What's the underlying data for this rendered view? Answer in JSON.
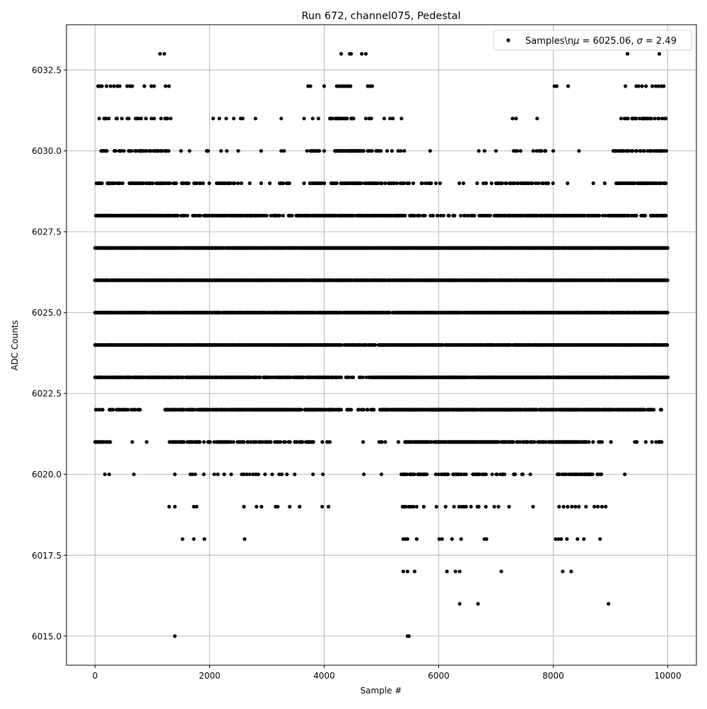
{
  "chart_data": {
    "type": "scatter",
    "title": "Run 672, channel075, Pedestal",
    "xlabel": "Sample #",
    "ylabel": "ADC Counts",
    "xlim": [
      -500,
      10500
    ],
    "ylim": [
      6014.1,
      6033.9
    ],
    "xticks": [
      0,
      2000,
      4000,
      6000,
      8000,
      10000
    ],
    "xtick_labels": [
      "0",
      "2000",
      "4000",
      "6000",
      "8000",
      "10000"
    ],
    "yticks": [
      6015.0,
      6017.5,
      6020.0,
      6022.5,
      6025.0,
      6027.5,
      6030.0,
      6032.5
    ],
    "ytick_labels": [
      "6015.0",
      "6017.5",
      "6020.0",
      "6022.5",
      "6025.0",
      "6027.5",
      "6030.0",
      "6032.5"
    ],
    "grid": true,
    "legend_position": "top-right",
    "marker_color": "#000000",
    "grid_color": "#b0b0b0",
    "series": [
      {
        "name": "Samples\\nμ = 6025.06, σ = 2.49",
        "levels": [
          {
            "y": 6033,
            "points": [
              1133,
              1207,
              4298,
              4446,
              4470,
              4655,
              4729,
              9298,
              9852
            ]
          },
          {
            "y": 6032,
            "points": [
              50,
              80,
              120,
              200,
              270,
              330,
              390,
              430,
              560,
              610,
              650,
              860,
              980,
              1030,
              1230,
              1290,
              3720,
              3760,
              4000,
              4220,
              4260,
              4300,
              4330,
              4360,
              4400,
              4430,
              4460,
              4760,
              4800,
              4840,
              8020,
              8060,
              8260,
              9260,
              9450,
              9490,
              9550,
              9620,
              9730,
              9790,
              9840,
              9890,
              9930
            ]
          },
          {
            "y": 6031,
            "segments": [
              [
                0,
                1350,
                0.25
              ],
              [
                2050,
                2600,
                0.15
              ],
              [
                4100,
                4500,
                0.5
              ],
              [
                4500,
                4850,
                0.2
              ],
              [
                9100,
                10000,
                0.35
              ]
            ],
            "points": [
              2800,
              3250,
              3650,
              3800,
              3900,
              5050,
              5150,
              5200,
              5350,
              7290,
              7350,
              7720
            ]
          },
          {
            "y": 6030,
            "segments": [
              [
                0,
                1300,
                0.4
              ],
              [
                1950,
                2050,
                0.4
              ],
              [
                3700,
                3950,
                0.5
              ],
              [
                4150,
                4700,
                0.8
              ],
              [
                4750,
                5000,
                0.3
              ],
              [
                5100,
                5400,
                0.2
              ],
              [
                7250,
                7450,
                0.4
              ],
              [
                7650,
                7900,
                0.3
              ],
              [
                9050,
                10000,
                0.5
              ]
            ],
            "points": [
              1500,
              1650,
              2200,
              2300,
              2500,
              2900,
              3250,
              3300,
              4000,
              5850,
              6700,
              6800,
              7000,
              8000,
              8450
            ]
          },
          {
            "y": 6029,
            "segments": [
              [
                0,
                1550,
                0.5
              ],
              [
                1550,
                2000,
                0.2
              ],
              [
                2100,
                2600,
                0.4
              ],
              [
                3200,
                3400,
                0.4
              ],
              [
                3750,
                4300,
                0.4
              ],
              [
                4300,
                4600,
                0.9
              ],
              [
                4600,
                5400,
                0.5
              ],
              [
                5400,
                7000,
                0.12
              ],
              [
                7000,
                7300,
                0.3
              ],
              [
                7300,
                8000,
                0.35
              ],
              [
                9100,
                10000,
                0.6
              ]
            ],
            "points": [
              2700,
              2900,
              3050,
              3650,
              8250,
              8700,
              8900
            ]
          },
          {
            "y": 6028,
            "segments": [
              [
                0,
                1300,
                0.9
              ],
              [
                1300,
                2900,
                0.5
              ],
              [
                2900,
                3500,
                0.3
              ],
              [
                3500,
                5400,
                0.8
              ],
              [
                5400,
                6300,
                0.3
              ],
              [
                6300,
                7000,
                0.4
              ],
              [
                7000,
                8000,
                0.8
              ],
              [
                8000,
                10000,
                0.6
              ]
            ]
          },
          {
            "y": 6027,
            "segments": [
              [
                0,
                10000,
                0.95
              ]
            ]
          },
          {
            "y": 6026,
            "segments": [
              [
                0,
                10000,
                0.9
              ]
            ]
          },
          {
            "y": 6025,
            "segments": [
              [
                0,
                10000,
                0.9
              ]
            ]
          },
          {
            "y": 6024,
            "segments": [
              [
                0,
                4300,
                0.9
              ],
              [
                4350,
                4900,
                0.6
              ],
              [
                4950,
                10000,
                0.85
              ]
            ]
          },
          {
            "y": 6023,
            "segments": [
              [
                0,
                4400,
                0.7
              ],
              [
                4400,
                4900,
                0.3
              ],
              [
                4900,
                10000,
                0.9
              ]
            ]
          },
          {
            "y": 6022,
            "segments": [
              [
                0,
                700,
                0.4
              ],
              [
                700,
                1100,
                0.1
              ],
              [
                1200,
                4300,
                0.7
              ],
              [
                4400,
                5000,
                0.3
              ],
              [
                5000,
                9600,
                0.8
              ],
              [
                9600,
                10000,
                0.3
              ]
            ]
          },
          {
            "y": 6021,
            "segments": [
              [
                0,
                300,
                0.4
              ],
              [
                1300,
                2600,
                0.5
              ],
              [
                2600,
                4100,
                0.4
              ],
              [
                4500,
                4700,
                0.2
              ],
              [
                4900,
                5300,
                0.3
              ],
              [
                5400,
                7300,
                0.8
              ],
              [
                7300,
                7800,
                0.3
              ],
              [
                7800,
                8600,
                0.8
              ],
              [
                8600,
                9200,
                0.2
              ],
              [
                9400,
                9900,
                0.15
              ]
            ],
            "points": [
              650,
              900
            ]
          },
          {
            "y": 6020,
            "segments": [
              [
                5300,
                5800,
                0.4
              ],
              [
                5950,
                7200,
                0.4
              ],
              [
                7300,
                7600,
                0.2
              ],
              [
                8050,
                8900,
                0.5
              ]
            ],
            "points": [
              172,
              246,
              677,
              1392,
              1663,
              1700,
              1749,
              1897,
              2081,
              2143,
              2254,
              2377,
              2562,
              2600,
              2650,
              2700,
              2759,
              2808,
              2850,
              2968,
              3091,
              3214,
              3260,
              3350,
              3485,
              3805,
              3978,
              4692,
              5000,
              9249
            ]
          },
          {
            "y": 6019,
            "points": [
              1293,
              1392,
              1724,
              1773,
              2599,
              2820,
              2906,
              3153,
              3190,
              3399,
              3571,
              3966,
              4076,
              5370,
              5400,
              5430,
              5480,
              5520,
              5560,
              5616,
              5739,
              5960,
              6121,
              6268,
              6355,
              6400,
              6440,
              6478,
              6564,
              6675,
              6700,
              6823,
              6970,
              7044,
              7229,
              7648,
              8103,
              8180,
              8250,
              8325,
              8387,
              8448,
              8571,
              8719,
              8780,
              8850,
              8916
            ]
          },
          {
            "y": 6018,
            "points": [
              1527,
              1724,
              1909,
              2611,
              5382,
              5420,
              5455,
              5616,
              6010,
              6059,
              6232,
              6392,
              6798,
              6835,
              8042,
              8090,
              8140,
              8239,
              8423,
              8534,
              8818
            ]
          },
          {
            "y": 6017,
            "points": [
              5382,
              5455,
              5579,
              6145,
              6293,
              6367,
              7094,
              8165,
              8313
            ]
          },
          {
            "y": 6016,
            "points": [
              6367,
              6687,
              8966
            ]
          },
          {
            "y": 6015,
            "points": [
              1392,
              5455,
              5480
            ]
          }
        ]
      }
    ]
  }
}
